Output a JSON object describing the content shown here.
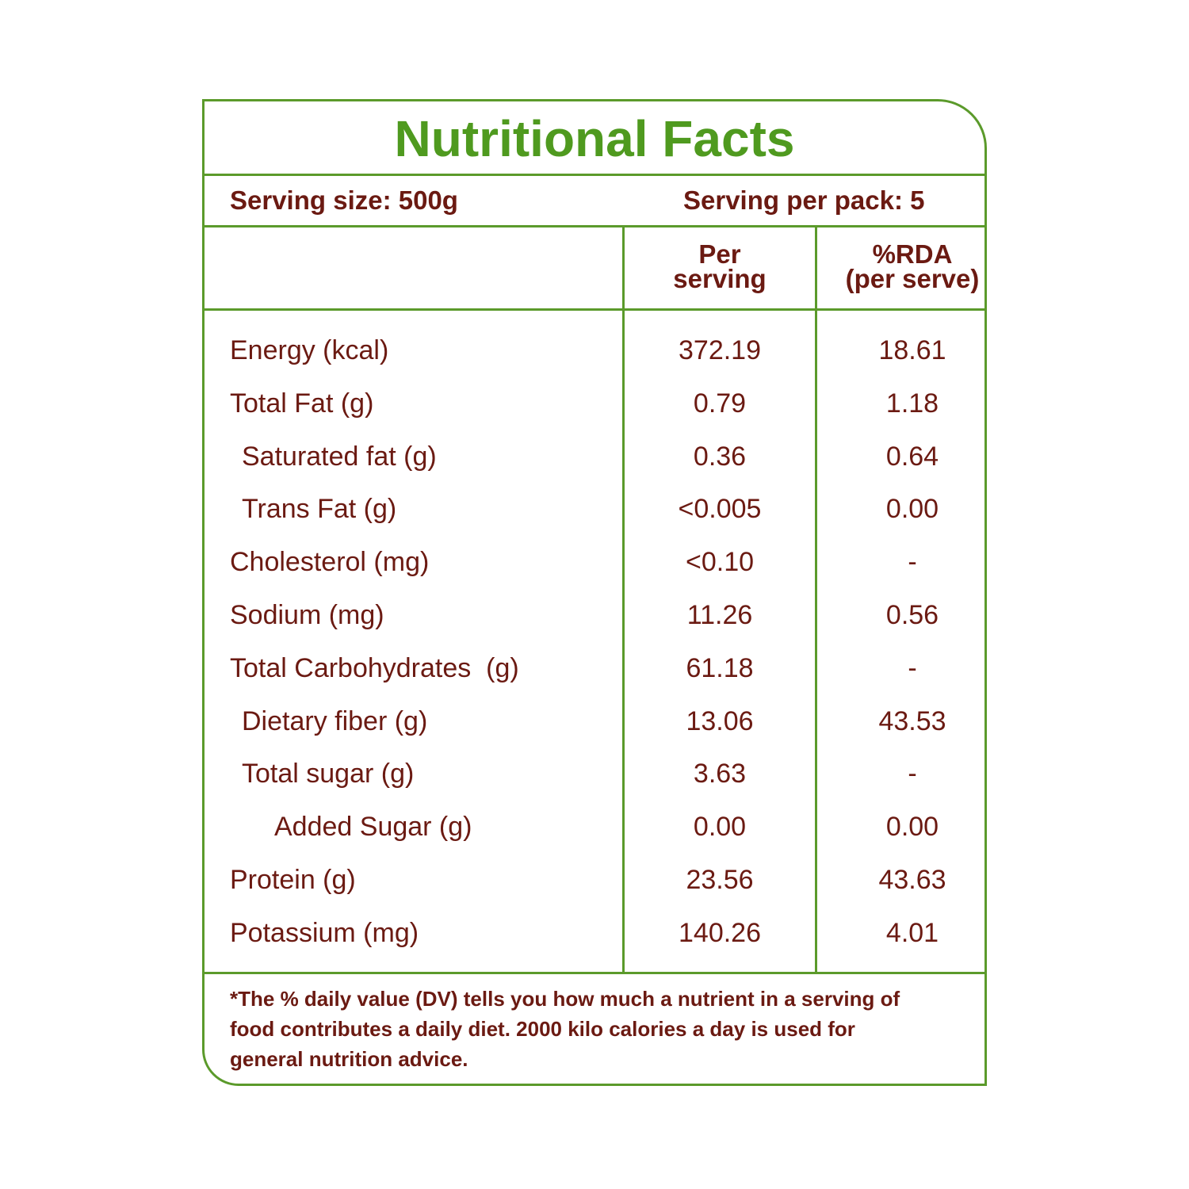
{
  "title": "Nutritional Facts",
  "serving_size": "Serving size: 500g",
  "serving_per_pack": "Serving per pack: 5",
  "table": {
    "columns": [
      [
        "Per",
        "serving"
      ],
      [
        "%RDA",
        "(per serve)"
      ]
    ],
    "rows": [
      {
        "label": "Energy (kcal)",
        "level": 0,
        "cells": [
          "372.19",
          "18.61"
        ]
      },
      {
        "label": "Total Fat (g)",
        "level": 0,
        "cells": [
          "0.79",
          "1.18"
        ]
      },
      {
        "label": "Saturated fat (g)",
        "level": 1,
        "cells": [
          "0.36",
          "0.64"
        ]
      },
      {
        "label": "Trans Fat (g)",
        "level": 1,
        "cells": [
          "<0.005",
          "0.00"
        ]
      },
      {
        "label": "Cholesterol (mg)",
        "level": 0,
        "cells": [
          "<0.10",
          "-"
        ]
      },
      {
        "label": "Sodium (mg)",
        "level": 0,
        "cells": [
          "11.26",
          "0.56"
        ]
      },
      {
        "label": "Total Carbohydrates  (g)",
        "level": 0,
        "cells": [
          "61.18",
          "-"
        ]
      },
      {
        "label": "Dietary fiber (g)",
        "level": 1,
        "cells": [
          "13.06",
          "43.53"
        ]
      },
      {
        "label": "Total sugar (g)",
        "level": 1,
        "cells": [
          "3.63",
          "-"
        ]
      },
      {
        "label": "Added Sugar (g)",
        "level": 2,
        "cells": [
          "0.00",
          "0.00"
        ]
      },
      {
        "label": "Protein (g)",
        "level": 0,
        "cells": [
          "23.56",
          "43.63"
        ]
      },
      {
        "label": "Potassium (mg)",
        "level": 0,
        "cells": [
          "140.26",
          "4.01"
        ]
      }
    ]
  },
  "footnote": "*The % daily value (DV) tells you how much a nutrient in a serving of food contributes a daily diet. 2000 kilo calories a day is used for general nutrition advice."
}
